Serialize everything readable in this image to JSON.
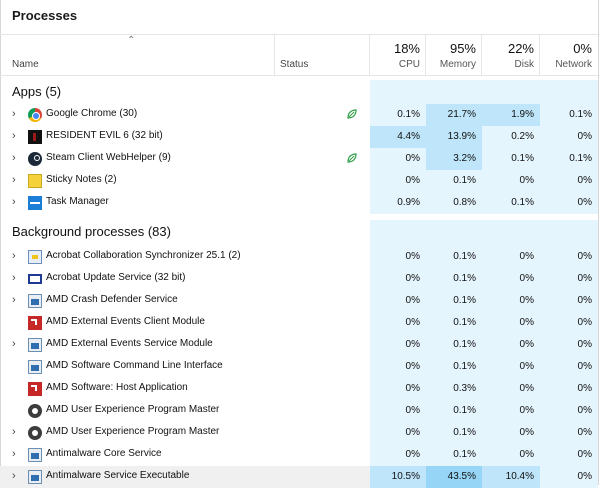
{
  "title": "Processes",
  "colors": {
    "heat_low": "#e5f5fd",
    "heat_mid": "#bfe5fa",
    "heat_high": "#97d5f7",
    "leaf": "#2e9d46"
  },
  "columns": {
    "name_label": "Name",
    "status_label": "Status",
    "cpu": {
      "percent": "18%",
      "label": "CPU"
    },
    "memory": {
      "percent": "95%",
      "label": "Memory"
    },
    "disk": {
      "percent": "22%",
      "label": "Disk"
    },
    "network": {
      "percent": "0%",
      "label": "Network"
    }
  },
  "apps": {
    "heading": "Apps (5)",
    "rows": [
      {
        "name": "Google Chrome (30)",
        "icon": "chrome-icon",
        "expandable": true,
        "eco": true,
        "cpu": "0.1%",
        "memory": "21.7%",
        "disk": "1.9%",
        "network": "0.1%",
        "heat": [
          "low",
          "mid",
          "mid",
          "low"
        ]
      },
      {
        "name": "RESIDENT EVIL 6 (32 bit)",
        "icon": "resident-evil-icon",
        "expandable": true,
        "eco": false,
        "cpu": "4.4%",
        "memory": "13.9%",
        "disk": "0.2%",
        "network": "0%",
        "heat": [
          "mid",
          "mid",
          "low",
          "low"
        ]
      },
      {
        "name": "Steam Client WebHelper (9)",
        "icon": "steam-icon",
        "expandable": true,
        "eco": true,
        "cpu": "0%",
        "memory": "3.2%",
        "disk": "0.1%",
        "network": "0.1%",
        "heat": [
          "low",
          "mid",
          "low",
          "low"
        ]
      },
      {
        "name": "Sticky Notes (2)",
        "icon": "sticky-notes-icon",
        "expandable": true,
        "eco": false,
        "cpu": "0%",
        "memory": "0.1%",
        "disk": "0%",
        "network": "0%",
        "heat": [
          "low",
          "low",
          "low",
          "low"
        ]
      },
      {
        "name": "Task Manager",
        "icon": "task-manager-icon",
        "expandable": true,
        "eco": false,
        "cpu": "0.9%",
        "memory": "0.8%",
        "disk": "0.1%",
        "network": "0%",
        "heat": [
          "low",
          "low",
          "low",
          "low"
        ]
      }
    ]
  },
  "background": {
    "heading": "Background processes (83)",
    "rows": [
      {
        "name": "Acrobat Collaboration Synchronizer 25.1 (2)",
        "icon": "acrobat-sync-icon",
        "expandable": true,
        "cpu": "0%",
        "memory": "0.1%",
        "disk": "0%",
        "network": "0%",
        "heat": [
          "low",
          "low",
          "low",
          "low"
        ]
      },
      {
        "name": "Acrobat Update Service (32 bit)",
        "icon": "acrobat-update-icon",
        "expandable": true,
        "cpu": "0%",
        "memory": "0.1%",
        "disk": "0%",
        "network": "0%",
        "heat": [
          "low",
          "low",
          "low",
          "low"
        ]
      },
      {
        "name": "AMD Crash Defender Service",
        "icon": "service-window-icon",
        "expandable": true,
        "cpu": "0%",
        "memory": "0.1%",
        "disk": "0%",
        "network": "0%",
        "heat": [
          "low",
          "low",
          "low",
          "low"
        ]
      },
      {
        "name": "AMD External Events Client Module",
        "icon": "amd-icon",
        "expandable": false,
        "cpu": "0%",
        "memory": "0.1%",
        "disk": "0%",
        "network": "0%",
        "heat": [
          "low",
          "low",
          "low",
          "low"
        ]
      },
      {
        "name": "AMD External Events Service Module",
        "icon": "service-window-icon",
        "expandable": true,
        "cpu": "0%",
        "memory": "0.1%",
        "disk": "0%",
        "network": "0%",
        "heat": [
          "low",
          "low",
          "low",
          "low"
        ]
      },
      {
        "name": "AMD Software Command Line Interface",
        "icon": "service-window-icon",
        "expandable": false,
        "cpu": "0%",
        "memory": "0.1%",
        "disk": "0%",
        "network": "0%",
        "heat": [
          "low",
          "low",
          "low",
          "low"
        ]
      },
      {
        "name": "AMD Software: Host Application",
        "icon": "amd-icon",
        "expandable": false,
        "cpu": "0%",
        "memory": "0.3%",
        "disk": "0%",
        "network": "0%",
        "heat": [
          "low",
          "low",
          "low",
          "low"
        ]
      },
      {
        "name": "AMD User Experience Program Master",
        "icon": "gear-icon",
        "expandable": false,
        "cpu": "0%",
        "memory": "0.1%",
        "disk": "0%",
        "network": "0%",
        "heat": [
          "low",
          "low",
          "low",
          "low"
        ]
      },
      {
        "name": "AMD User Experience Program Master",
        "icon": "gear-icon",
        "expandable": true,
        "cpu": "0%",
        "memory": "0.1%",
        "disk": "0%",
        "network": "0%",
        "heat": [
          "low",
          "low",
          "low",
          "low"
        ]
      },
      {
        "name": "Antimalware Core Service",
        "icon": "service-window-icon",
        "expandable": true,
        "cpu": "0%",
        "memory": "0.1%",
        "disk": "0%",
        "network": "0%",
        "heat": [
          "low",
          "low",
          "low",
          "low"
        ]
      },
      {
        "name": "Antimalware Service Executable",
        "icon": "service-window-icon",
        "expandable": true,
        "selected": true,
        "cpu": "10.5%",
        "memory": "43.5%",
        "disk": "10.4%",
        "network": "0%",
        "heat": [
          "mid",
          "high",
          "mid",
          "low"
        ]
      }
    ]
  }
}
